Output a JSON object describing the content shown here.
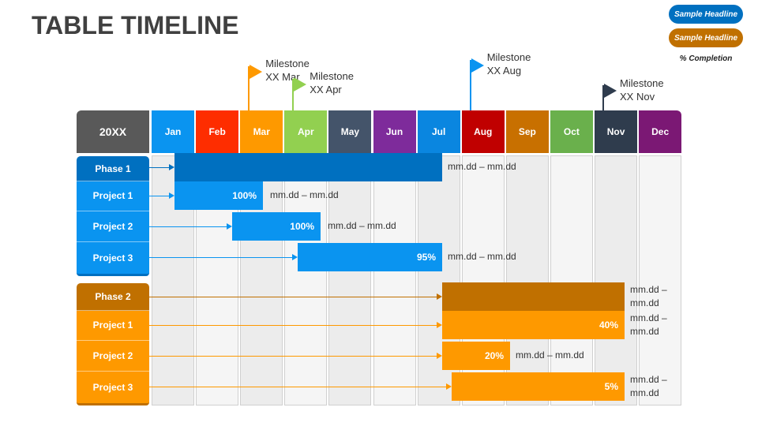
{
  "title": "TABLE TIMELINE",
  "legend": {
    "items": [
      {
        "label": "Sample Headline",
        "color": "#0070c0"
      },
      {
        "label": "Sample Headline",
        "color": "#c07000"
      }
    ],
    "note": "% Completion"
  },
  "header": {
    "year": "20XX",
    "months": [
      {
        "label": "Jan",
        "color": "#0a94f0"
      },
      {
        "label": "Feb",
        "color": "#fe2d00"
      },
      {
        "label": "Mar",
        "color": "#fe9900"
      },
      {
        "label": "Apr",
        "color": "#92d050"
      },
      {
        "label": "May",
        "color": "#44546a"
      },
      {
        "label": "Jun",
        "color": "#7e2b9b"
      },
      {
        "label": "Jul",
        "color": "#0a86e0"
      },
      {
        "label": "Aug",
        "color": "#c00000"
      },
      {
        "label": "Sep",
        "color": "#c87000"
      },
      {
        "label": "Oct",
        "color": "#6ab04c"
      },
      {
        "label": "Nov",
        "color": "#2f3c4d"
      },
      {
        "label": "Dec",
        "color": "#7b1874"
      }
    ]
  },
  "milestones": [
    {
      "line1": "Milestone",
      "line2": "XX Mar",
      "month_index": 2,
      "color": "#fe9900"
    },
    {
      "line1": "Milestone",
      "line2": "XX Apr",
      "month_index": 3,
      "color": "#92d050"
    },
    {
      "line1": "Milestone",
      "line2": "XX Aug",
      "month_index": 7,
      "color": "#0a94f0"
    },
    {
      "line1": "Milestone",
      "line2": "XX Nov",
      "month_index": 10,
      "color": "#2f3c4d"
    }
  ],
  "phases": [
    {
      "label": "Phase 1",
      "color": "#0070c0",
      "bar_color": "#0070c0",
      "dates": "mm.dd – mm.dd",
      "projects": [
        {
          "label": "Project 1",
          "percent": "100%",
          "dates": "mm.dd – mm.dd"
        },
        {
          "label": "Project 2",
          "percent": "100%",
          "dates": "mm.dd – mm.dd"
        },
        {
          "label": "Project 3",
          "percent": "95%",
          "dates": "mm.dd – mm.dd"
        }
      ],
      "project_color": "#0a94f0"
    },
    {
      "label": "Phase 2",
      "color": "#c07000",
      "bar_color": "#c07000",
      "dates": "mm.dd – mm.dd",
      "projects": [
        {
          "label": "Project 1",
          "percent": "40%",
          "dates": "mm.dd – mm.dd"
        },
        {
          "label": "Project 2",
          "percent": "20%",
          "dates": "mm.dd – mm.dd"
        },
        {
          "label": "Project 3",
          "percent": "5%",
          "dates": "mm.dd – mm.dd"
        }
      ],
      "project_color": "#fe9900"
    }
  ]
}
